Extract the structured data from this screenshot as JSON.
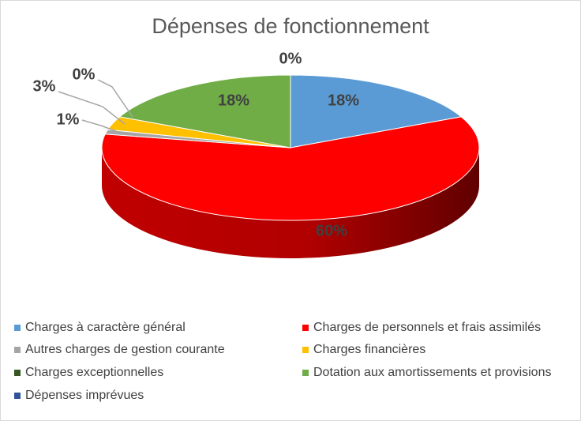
{
  "chart_data": {
    "type": "pie",
    "title": "Dépenses de fonctionnement",
    "legend_position": "bottom",
    "slices": [
      {
        "name": "Charges à caractère général",
        "value": 18,
        "label": "18%",
        "color": "#5b9bd5"
      },
      {
        "name": "Charges de personnels et frais assimilés",
        "value": 60,
        "label": "60%",
        "color": "#ff0000"
      },
      {
        "name": "Autres charges de gestion courante",
        "value": 1,
        "label": "1%",
        "color": "#a5a5a5"
      },
      {
        "name": "Charges financières",
        "value": 3,
        "label": "3%",
        "color": "#ffc000"
      },
      {
        "name": "Charges exceptionnelles",
        "value": 0,
        "label": "0%",
        "color": "#375623"
      },
      {
        "name": "Dotation aux amortissements et provisions",
        "value": 18,
        "label": "18%",
        "color": "#70ad47"
      },
      {
        "name": "Dépenses imprévues",
        "value": 0,
        "label": "0%",
        "color": "#2e5597"
      }
    ]
  }
}
